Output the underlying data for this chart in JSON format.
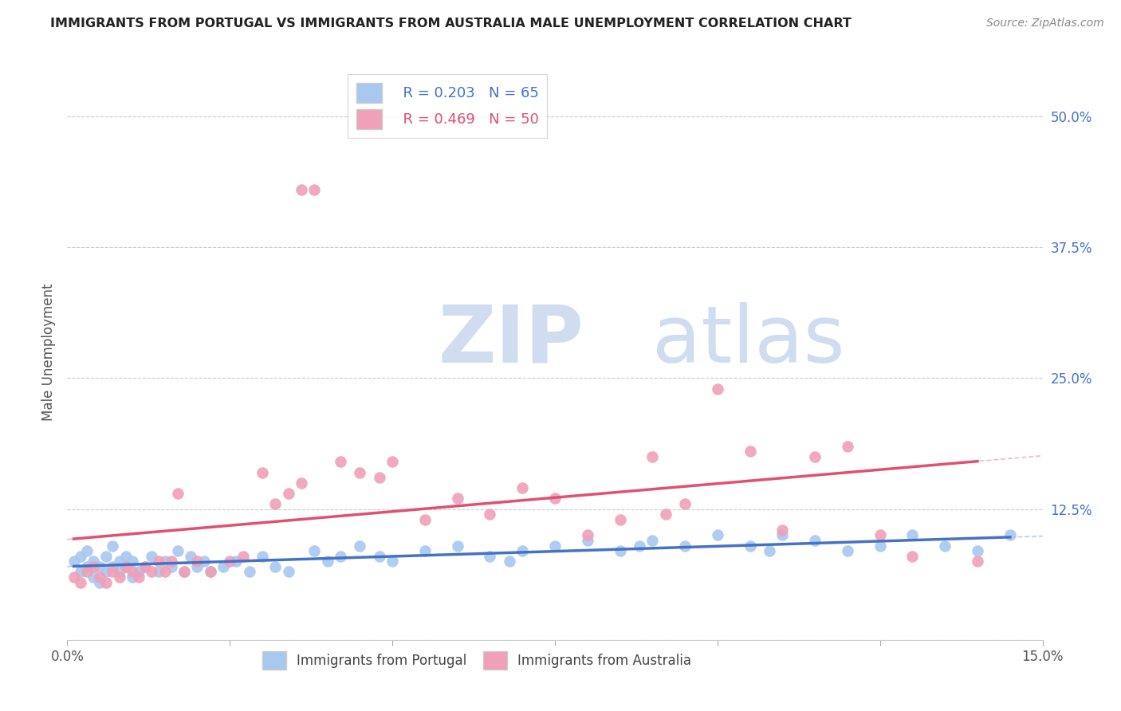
{
  "title": "IMMIGRANTS FROM PORTUGAL VS IMMIGRANTS FROM AUSTRALIA MALE UNEMPLOYMENT CORRELATION CHART",
  "source": "Source: ZipAtlas.com",
  "ylabel": "Male Unemployment",
  "xlim": [
    0.0,
    0.15
  ],
  "ylim": [
    0.0,
    0.55
  ],
  "xtick_positions": [
    0.0,
    0.025,
    0.05,
    0.075,
    0.1,
    0.125,
    0.15
  ],
  "xtick_labels": [
    "0.0%",
    "",
    "",
    "",
    "",
    "",
    "15.0%"
  ],
  "ytick_vals": [
    0.0,
    0.125,
    0.25,
    0.375,
    0.5
  ],
  "ytick_labels": [
    "",
    "12.5%",
    "25.0%",
    "37.5%",
    "50.0%"
  ],
  "legend_r1": "R = 0.203",
  "legend_n1": "N = 65",
  "legend_r2": "R = 0.469",
  "legend_n2": "N = 50",
  "color_portugal": "#A8C8F0",
  "color_australia": "#F0A0B8",
  "color_portugal_line": "#4472C4",
  "color_australia_line": "#E05070",
  "color_portugal_line_dashed": "#A0B8D8",
  "color_australia_line_dashed": "#E8A0B0",
  "watermark_color": "#D0DCF0",
  "portugal_x": [
    0.001,
    0.002,
    0.002,
    0.003,
    0.003,
    0.004,
    0.004,
    0.005,
    0.005,
    0.006,
    0.006,
    0.007,
    0.007,
    0.008,
    0.008,
    0.009,
    0.009,
    0.01,
    0.01,
    0.011,
    0.012,
    0.013,
    0.014,
    0.015,
    0.016,
    0.017,
    0.018,
    0.019,
    0.02,
    0.021,
    0.022,
    0.024,
    0.026,
    0.028,
    0.03,
    0.032,
    0.034,
    0.038,
    0.04,
    0.042,
    0.045,
    0.048,
    0.05,
    0.055,
    0.06,
    0.065,
    0.068,
    0.07,
    0.075,
    0.08,
    0.085,
    0.088,
    0.09,
    0.095,
    0.1,
    0.105,
    0.108,
    0.11,
    0.115,
    0.12,
    0.125,
    0.13,
    0.135,
    0.14,
    0.145
  ],
  "portugal_y": [
    0.075,
    0.065,
    0.08,
    0.07,
    0.085,
    0.06,
    0.075,
    0.055,
    0.07,
    0.065,
    0.08,
    0.07,
    0.09,
    0.075,
    0.065,
    0.08,
    0.07,
    0.06,
    0.075,
    0.065,
    0.07,
    0.08,
    0.065,
    0.075,
    0.07,
    0.085,
    0.065,
    0.08,
    0.07,
    0.075,
    0.065,
    0.07,
    0.075,
    0.065,
    0.08,
    0.07,
    0.065,
    0.085,
    0.075,
    0.08,
    0.09,
    0.08,
    0.075,
    0.085,
    0.09,
    0.08,
    0.075,
    0.085,
    0.09,
    0.095,
    0.085,
    0.09,
    0.095,
    0.09,
    0.1,
    0.09,
    0.085,
    0.1,
    0.095,
    0.085,
    0.09,
    0.1,
    0.09,
    0.085,
    0.1
  ],
  "australia_x": [
    0.001,
    0.002,
    0.003,
    0.004,
    0.005,
    0.006,
    0.007,
    0.008,
    0.009,
    0.01,
    0.011,
    0.012,
    0.013,
    0.014,
    0.015,
    0.016,
    0.017,
    0.018,
    0.02,
    0.022,
    0.025,
    0.027,
    0.03,
    0.032,
    0.034,
    0.036,
    0.036,
    0.038,
    0.042,
    0.045,
    0.048,
    0.05,
    0.055,
    0.06,
    0.065,
    0.07,
    0.075,
    0.08,
    0.085,
    0.09,
    0.092,
    0.095,
    0.1,
    0.105,
    0.11,
    0.115,
    0.12,
    0.125,
    0.13,
    0.14
  ],
  "australia_y": [
    0.06,
    0.055,
    0.065,
    0.07,
    0.06,
    0.055,
    0.065,
    0.06,
    0.07,
    0.065,
    0.06,
    0.07,
    0.065,
    0.075,
    0.065,
    0.075,
    0.14,
    0.065,
    0.075,
    0.065,
    0.075,
    0.08,
    0.16,
    0.13,
    0.14,
    0.15,
    0.43,
    0.43,
    0.17,
    0.16,
    0.155,
    0.17,
    0.115,
    0.135,
    0.12,
    0.145,
    0.135,
    0.1,
    0.115,
    0.175,
    0.12,
    0.13,
    0.24,
    0.18,
    0.105,
    0.175,
    0.185,
    0.1,
    0.08,
    0.075
  ]
}
